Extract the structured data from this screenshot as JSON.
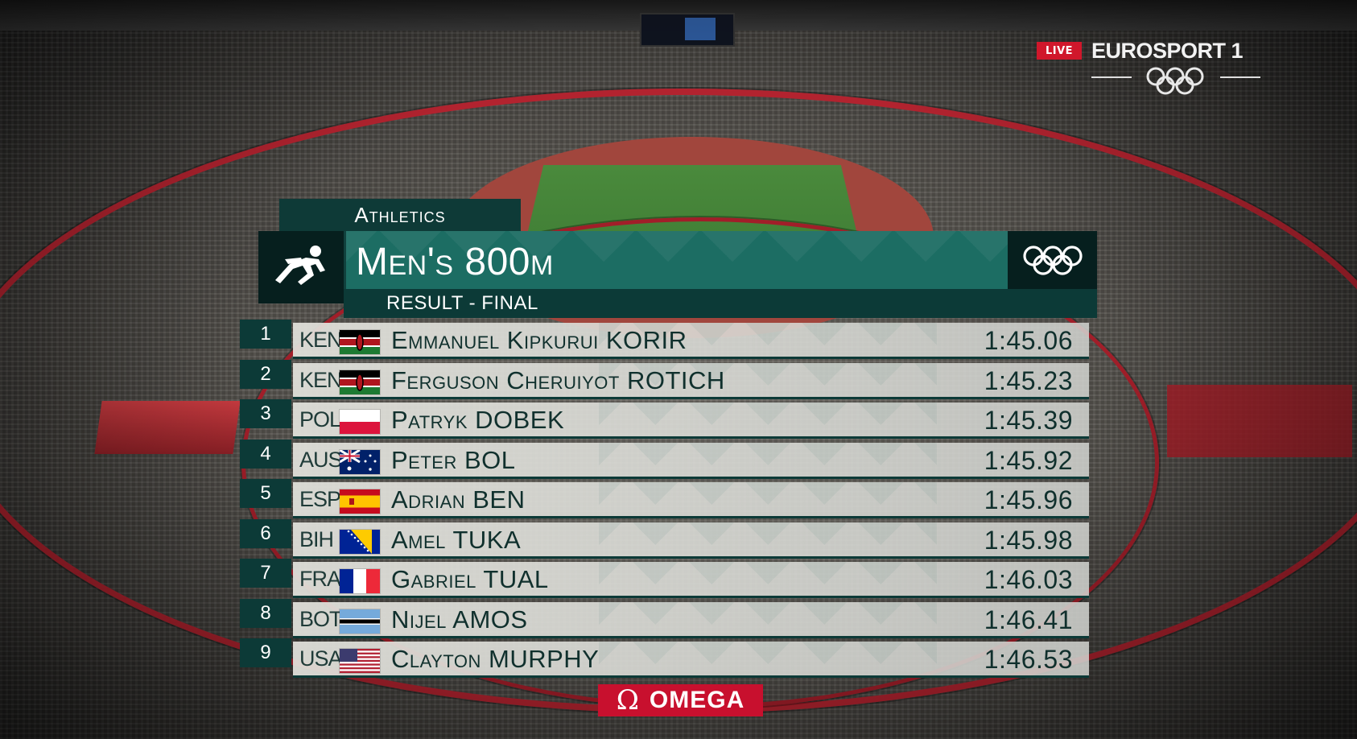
{
  "broadcaster": {
    "live_label": "LIVE",
    "channel": "EUROSPORT 1"
  },
  "graphic": {
    "sport": "Athletics",
    "event_title": "Men's 800m",
    "subtitle": "RESULT - FINAL",
    "sponsor": "OMEGA",
    "colors": {
      "dark_teal": "#0c3a37",
      "teal": "#1c6d63",
      "row_text": "#10302d",
      "sponsor_red": "#c8102e",
      "live_red": "#d0172b"
    },
    "icons": [
      "athletics-pictogram-icon",
      "olympic-rings-icon",
      "omega-icon"
    ]
  },
  "results": [
    {
      "position": "1",
      "country": "KEN",
      "flag": "kenya-flag-icon",
      "name": "Emmanuel Kipkurui KORIR",
      "time": "1:45.06"
    },
    {
      "position": "2",
      "country": "KEN",
      "flag": "kenya-flag-icon",
      "name": "Ferguson Cheruiyot ROTICH",
      "time": "1:45.23"
    },
    {
      "position": "3",
      "country": "POL",
      "flag": "poland-flag-icon",
      "name": "Patryk DOBEK",
      "time": "1:45.39"
    },
    {
      "position": "4",
      "country": "AUS",
      "flag": "australia-flag-icon",
      "name": "Peter BOL",
      "time": "1:45.92"
    },
    {
      "position": "5",
      "country": "ESP",
      "flag": "spain-flag-icon",
      "name": "Adrian BEN",
      "time": "1:45.96"
    },
    {
      "position": "6",
      "country": "BIH",
      "flag": "bosnia-flag-icon",
      "name": "Amel TUKA",
      "time": "1:45.98"
    },
    {
      "position": "7",
      "country": "FRA",
      "flag": "france-flag-icon",
      "name": "Gabriel TUAL",
      "time": "1:46.03"
    },
    {
      "position": "8",
      "country": "BOT",
      "flag": "botswana-flag-icon",
      "name": "Nijel AMOS",
      "time": "1:46.41"
    },
    {
      "position": "9",
      "country": "USA",
      "flag": "usa-flag-icon",
      "name": "Clayton MURPHY",
      "time": "1:46.53"
    }
  ]
}
